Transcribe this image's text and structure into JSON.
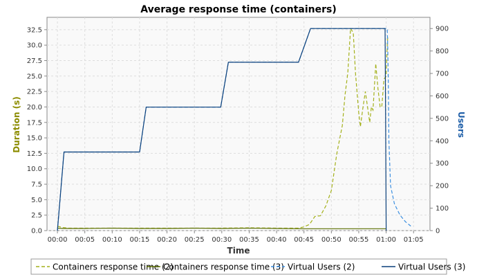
{
  "chart_data": {
    "type": "line",
    "title": "Average response time (containers)",
    "xlabel": "Time",
    "ylabel_left": "Duration (s)",
    "ylabel_right": "Users",
    "x_unit": "minutes (mm:ss)",
    "xlim": [
      -1.9,
      68
    ],
    "ylim_left": [
      0,
      34.5
    ],
    "ylim_right": [
      0,
      950
    ],
    "x_ticks": [
      "00:00",
      "00:05",
      "00:10",
      "00:15",
      "00:20",
      "00:25",
      "00:30",
      "00:35",
      "00:40",
      "00:45",
      "00:50",
      "00:55",
      "01:00",
      "01:05"
    ],
    "x_tick_values": [
      0,
      5,
      10,
      15,
      20,
      25,
      30,
      35,
      40,
      45,
      50,
      55,
      60,
      65
    ],
    "y_ticks_left": [
      "0.0",
      "2.5",
      "5.0",
      "7.5",
      "10.0",
      "12.5",
      "15.0",
      "17.5",
      "20.0",
      "22.5",
      "25.0",
      "27.5",
      "30.0",
      "32.5"
    ],
    "y_tick_values_left": [
      0,
      2.5,
      5,
      7.5,
      10,
      12.5,
      15,
      17.5,
      20,
      22.5,
      25,
      27.5,
      30,
      32.5
    ],
    "y_ticks_right": [
      "0",
      "100",
      "200",
      "300",
      "400",
      "500",
      "600",
      "700",
      "800",
      "900"
    ],
    "y_tick_values_right": [
      0,
      100,
      200,
      300,
      400,
      500,
      600,
      700,
      800,
      900
    ],
    "grid": true,
    "legend_position": "bottom",
    "colors": {
      "response": "#9aaa1e",
      "response_dark": "#5a6e00",
      "users": "#1f5fa8",
      "users_dark": "#0a3f7a",
      "left_axis_title": "#8c8c00",
      "right_axis_title": "#1f5fa8",
      "plot_bg": "#f9f9f9",
      "grid": "#dddddd"
    },
    "series": [
      {
        "name": "Containers response time (2)",
        "axis": "left",
        "style": "dashed",
        "color": "#a3b019",
        "points": [
          [
            0,
            0.7
          ],
          [
            1,
            0.5
          ],
          [
            2,
            0.4
          ],
          [
            3,
            0.4
          ],
          [
            5,
            0.4
          ],
          [
            10,
            0.4
          ],
          [
            15,
            0.4
          ],
          [
            20,
            0.4
          ],
          [
            25,
            0.4
          ],
          [
            30,
            0.4
          ],
          [
            35,
            0.45
          ],
          [
            40,
            0.4
          ],
          [
            44,
            0.4
          ],
          [
            45,
            0.6
          ],
          [
            46,
            1.0
          ],
          [
            47,
            2.3
          ],
          [
            48,
            2.4
          ],
          [
            49,
            4.0
          ],
          [
            50,
            6.5
          ],
          [
            51,
            12.5
          ],
          [
            52,
            17.0
          ],
          [
            52.5,
            22.0
          ],
          [
            53,
            25.5
          ],
          [
            53.5,
            32.7
          ],
          [
            54,
            32.0
          ],
          [
            54.4,
            25.5
          ],
          [
            55,
            19.0
          ],
          [
            55.3,
            16.8
          ],
          [
            55.7,
            19.5
          ],
          [
            56.2,
            22.5
          ],
          [
            56.6,
            20.0
          ],
          [
            57,
            17.5
          ],
          [
            57.3,
            20.0
          ],
          [
            57.6,
            19.5
          ],
          [
            58.1,
            27.0
          ],
          [
            58.5,
            23.0
          ],
          [
            58.9,
            20.0
          ],
          [
            59.2,
            20.0
          ],
          [
            59.6,
            24.5
          ],
          [
            60,
            25.0
          ],
          [
            60.2,
            30.0
          ],
          [
            60.3,
            31.5
          ]
        ]
      },
      {
        "name": "Containers response time (3)",
        "axis": "left",
        "style": "solid",
        "color": "#5a6e00",
        "points": [
          [
            0,
            0.4
          ],
          [
            1,
            0.35
          ],
          [
            5,
            0.35
          ],
          [
            10,
            0.4
          ],
          [
            15,
            0.35
          ],
          [
            20,
            0.35
          ],
          [
            25,
            0.4
          ],
          [
            30,
            0.35
          ],
          [
            35,
            0.4
          ],
          [
            40,
            0.35
          ],
          [
            45,
            0.3
          ],
          [
            50,
            0.3
          ],
          [
            55,
            0.3
          ],
          [
            60,
            0.3
          ]
        ]
      },
      {
        "name": "Virtual Users (2)",
        "axis": "right",
        "style": "dashed",
        "color": "#3a8ee0",
        "points": [
          [
            0,
            0
          ],
          [
            1.2,
            350
          ],
          [
            15,
            350
          ],
          [
            16.2,
            550
          ],
          [
            29.8,
            550
          ],
          [
            31.2,
            750
          ],
          [
            44,
            750
          ],
          [
            46.2,
            900
          ],
          [
            60.2,
            900
          ],
          [
            60.3,
            800
          ],
          [
            60.4,
            650
          ],
          [
            60.5,
            400
          ],
          [
            60.8,
            200
          ],
          [
            61.5,
            120
          ],
          [
            62.5,
            70
          ],
          [
            63.5,
            40
          ],
          [
            64.5,
            20
          ]
        ]
      },
      {
        "name": "Virtual Users (3)",
        "axis": "right",
        "style": "solid",
        "color": "#0a3f7a",
        "points": [
          [
            0,
            0
          ],
          [
            1.2,
            350
          ],
          [
            15,
            350
          ],
          [
            16.2,
            550
          ],
          [
            29.8,
            550
          ],
          [
            31.2,
            750
          ],
          [
            44,
            750
          ],
          [
            46.2,
            900
          ],
          [
            59.8,
            900
          ],
          [
            59.9,
            500
          ],
          [
            60,
            0
          ]
        ]
      }
    ]
  }
}
